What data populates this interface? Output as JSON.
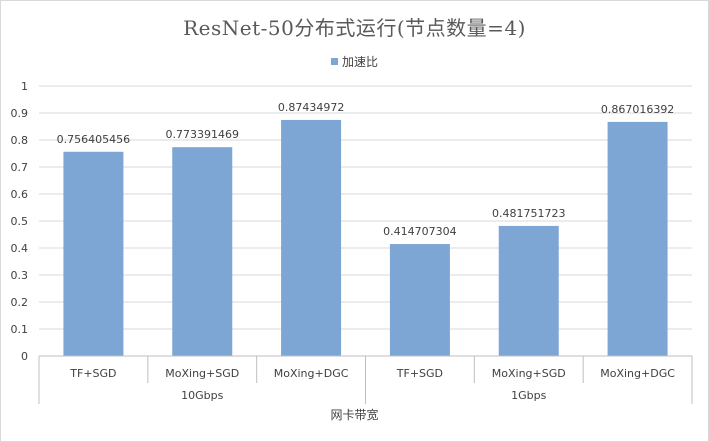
{
  "chart_data": {
    "type": "bar",
    "title": "ResNet-50分布式运行(节点数量=4)",
    "xlabel": "网卡带宽",
    "ylabel": "",
    "ylim": [
      0,
      1
    ],
    "yticks": [
      "0",
      "0.1",
      "0.2",
      "0.3",
      "0.4",
      "0.5",
      "0.6",
      "0.7",
      "0.8",
      "0.9",
      "1"
    ],
    "legend_position": "top",
    "grid": true,
    "groups": [
      "10Gbps",
      "1Gbps"
    ],
    "categories": [
      "TF+SGD",
      "MoXing+SGD",
      "MoXing+DGC",
      "TF+SGD",
      "MoXing+SGD",
      "MoXing+DGC"
    ],
    "series": [
      {
        "name": "加速比",
        "values": [
          0.756405456,
          0.773391469,
          0.87434972,
          0.414707304,
          0.481751723,
          0.867016392
        ],
        "labels": [
          "0.756405456",
          "0.773391469",
          "0.87434972",
          "0.414707304",
          "0.481751723",
          "0.867016392"
        ]
      }
    ],
    "colors": {
      "bar": "#7ea6d4",
      "grid": "#d9d9d9",
      "axis": "#bfbfbf",
      "text": "#404040"
    }
  }
}
